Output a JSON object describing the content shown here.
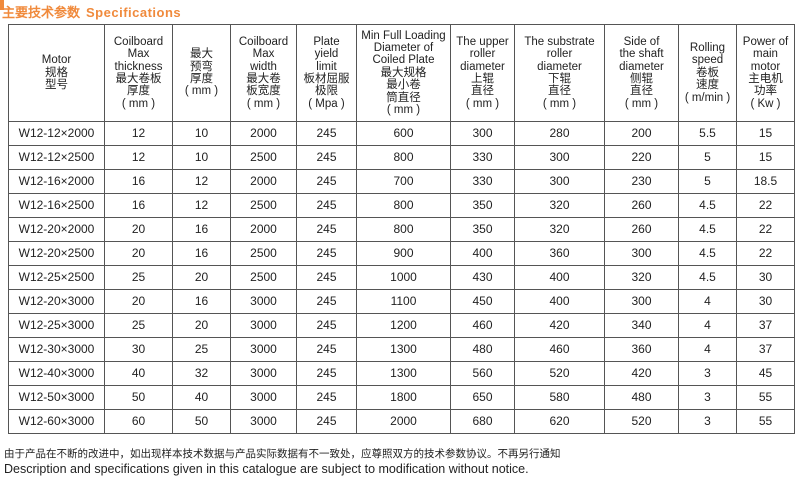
{
  "title": {
    "cn": "主要技术参数",
    "en": "Specifications"
  },
  "accent_color": "#f08a3c",
  "table": {
    "headers": [
      "Motor\n规格\n型号",
      "Coilboard\nMax\nthickness\n最大卷板\n厚度\n( mm )",
      "最大\n预弯\n厚度\n( mm )",
      "Coilboard\nMax\nwidth\n最大卷\n板宽度\n( mm )",
      "Plate\nyield\nlimit\n板材屈服\n极限\n( Mpa )",
      "Min Full Loading\nDiameter of\nCoiled Plate\n最大规格\n最小卷\n筒直径\n( mm )",
      "The upper\nroller\ndiameter\n上辊\n直径\n( mm )",
      "The substrate\nroller\ndiameter\n下辊\n直径\n( mm )",
      "Side of\nthe shaft\ndiameter\n侧辊\n直径\n( mm )",
      "Rolling\nspeed\n卷板\n速度\n( m/min )",
      "Power of\nmain\nmotor\n主电机\n功率\n( Kw )"
    ],
    "rows": [
      [
        "W12-12×2000",
        "12",
        "10",
        "2000",
        "245",
        "600",
        "300",
        "280",
        "200",
        "5.5",
        "15"
      ],
      [
        "W12-12×2500",
        "12",
        "10",
        "2500",
        "245",
        "800",
        "330",
        "300",
        "220",
        "5",
        "15"
      ],
      [
        "W12-16×2000",
        "16",
        "12",
        "2000",
        "245",
        "700",
        "330",
        "300",
        "230",
        "5",
        "18.5"
      ],
      [
        "W12-16×2500",
        "16",
        "12",
        "2500",
        "245",
        "800",
        "350",
        "320",
        "260",
        "4.5",
        "22"
      ],
      [
        "W12-20×2000",
        "20",
        "16",
        "2000",
        "245",
        "800",
        "350",
        "320",
        "260",
        "4.5",
        "22"
      ],
      [
        "W12-20×2500",
        "20",
        "16",
        "2500",
        "245",
        "900",
        "400",
        "360",
        "300",
        "4.5",
        "22"
      ],
      [
        "W12-25×2500",
        "25",
        "20",
        "2500",
        "245",
        "1000",
        "430",
        "400",
        "320",
        "4.5",
        "30"
      ],
      [
        "W12-20×3000",
        "20",
        "16",
        "3000",
        "245",
        "1100",
        "450",
        "400",
        "300",
        "4",
        "30"
      ],
      [
        "W12-25×3000",
        "25",
        "20",
        "3000",
        "245",
        "1200",
        "460",
        "420",
        "340",
        "4",
        "37"
      ],
      [
        "W12-30×3000",
        "30",
        "25",
        "3000",
        "245",
        "1300",
        "480",
        "460",
        "360",
        "4",
        "37"
      ],
      [
        "W12-40×3000",
        "40",
        "32",
        "3000",
        "245",
        "1300",
        "560",
        "520",
        "420",
        "3",
        "45"
      ],
      [
        "W12-50×3000",
        "50",
        "40",
        "3000",
        "245",
        "1800",
        "650",
        "580",
        "480",
        "3",
        "55"
      ],
      [
        "W12-60×3000",
        "60",
        "50",
        "3000",
        "245",
        "2000",
        "680",
        "620",
        "520",
        "3",
        "55"
      ]
    ]
  },
  "notes": {
    "cn": "由于产品在不断的改进中，如出现样本技术数据与产品实际数据有不一致处，应尊照双方的技术参数协议。不再另行通知",
    "en": "Description and specifications given in this catalogue are subject to modification without notice."
  }
}
